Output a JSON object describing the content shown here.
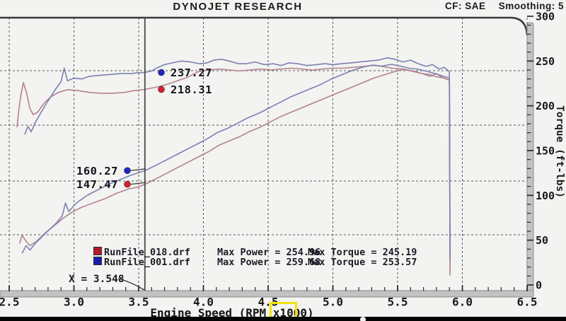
{
  "header": {
    "title": "DYNOJET RESEARCH",
    "cf_label": "CF: SAE",
    "smoothing_label": "Smoothing: 5"
  },
  "chart_data": {
    "type": "line",
    "xlabel": "Engine Speed (RPM x1000)",
    "ylabel_right": "Torque (ft-lbs)",
    "x_ticks": [
      "2.5",
      "3.0",
      "3.5",
      "4.0",
      "4.5",
      "5.0",
      "5.5",
      "6.0",
      "6.5"
    ],
    "x_range": [
      2.5,
      6.5
    ],
    "y_right_ticks": [
      "0",
      "50",
      "100",
      "150",
      "200",
      "250",
      "300"
    ],
    "y_right_range": [
      0,
      300
    ],
    "grid": true,
    "cursor": {
      "x": 3.548,
      "label": "X = 3.548",
      "readouts": [
        {
          "series": "RunFile_001.drf",
          "axis": "torque",
          "value": 237.27,
          "color": "blue"
        },
        {
          "series": "RunFile_018.drf",
          "axis": "torque",
          "value": 218.31,
          "color": "red"
        },
        {
          "series": "RunFile_001.drf",
          "axis": "power",
          "value": 160.27,
          "color": "blue"
        },
        {
          "series": "RunFile_018.drf",
          "axis": "power",
          "value": 147.47,
          "color": "red"
        }
      ]
    },
    "legend": {
      "power_label": "Max Power",
      "torque_label": "Max Torque",
      "rows": [
        {
          "file": "RunFile_018.drf",
          "max_power": 254.96,
          "max_torque": 245.19,
          "color": "red"
        },
        {
          "file": "RunFile_001.drf",
          "max_power": 259.68,
          "max_torque": 253.57,
          "color": "blue"
        }
      ]
    },
    "series": [
      {
        "name": "RunFile_018.drf torque",
        "color": "red",
        "axis": "torque",
        "points": [
          [
            2.56,
            176
          ],
          [
            2.575,
            196
          ],
          [
            2.59,
            212
          ],
          [
            2.61,
            226
          ],
          [
            2.635,
            214
          ],
          [
            2.66,
            197
          ],
          [
            2.685,
            190
          ],
          [
            2.72,
            193
          ],
          [
            2.77,
            203
          ],
          [
            2.82,
            210
          ],
          [
            2.88,
            215
          ],
          [
            2.95,
            218
          ],
          [
            3.03,
            217
          ],
          [
            3.12,
            215
          ],
          [
            3.21,
            214
          ],
          [
            3.3,
            214
          ],
          [
            3.39,
            215
          ],
          [
            3.47,
            217
          ],
          [
            3.548,
            218.31
          ],
          [
            3.64,
            221
          ],
          [
            3.72,
            224
          ],
          [
            3.8,
            228
          ],
          [
            3.88,
            232
          ],
          [
            3.96,
            238
          ],
          [
            4.04,
            240
          ],
          [
            4.12,
            241
          ],
          [
            4.2,
            240
          ],
          [
            4.28,
            239
          ],
          [
            4.36,
            240
          ],
          [
            4.44,
            241
          ],
          [
            4.52,
            240
          ],
          [
            4.6,
            241
          ],
          [
            4.68,
            242
          ],
          [
            4.76,
            241
          ],
          [
            4.84,
            240
          ],
          [
            4.92,
            241
          ],
          [
            5.0,
            242
          ],
          [
            5.08,
            242
          ],
          [
            5.16,
            243
          ],
          [
            5.24,
            244
          ],
          [
            5.31,
            245.19
          ],
          [
            5.38,
            244
          ],
          [
            5.46,
            242
          ],
          [
            5.54,
            241
          ],
          [
            5.62,
            239
          ],
          [
            5.69,
            236
          ],
          [
            5.75,
            233
          ],
          [
            5.8,
            236
          ],
          [
            5.84,
            232
          ],
          [
            5.9,
            229
          ],
          [
            5.905,
            14
          ]
        ]
      },
      {
        "name": "RunFile_001.drf torque",
        "color": "blue",
        "axis": "torque",
        "points": [
          [
            2.62,
            168
          ],
          [
            2.645,
            177
          ],
          [
            2.67,
            171
          ],
          [
            2.7,
            181
          ],
          [
            2.74,
            191
          ],
          [
            2.78,
            201
          ],
          [
            2.82,
            210
          ],
          [
            2.86,
            219
          ],
          [
            2.9,
            227
          ],
          [
            2.925,
            242
          ],
          [
            2.95,
            228
          ],
          [
            3.0,
            231
          ],
          [
            3.06,
            230
          ],
          [
            3.12,
            233
          ],
          [
            3.2,
            234
          ],
          [
            3.28,
            235
          ],
          [
            3.36,
            236
          ],
          [
            3.44,
            236
          ],
          [
            3.5,
            237
          ],
          [
            3.548,
            237.27
          ],
          [
            3.6,
            239
          ],
          [
            3.65,
            243
          ],
          [
            3.7,
            246
          ],
          [
            3.76,
            248
          ],
          [
            3.83,
            250
          ],
          [
            3.9,
            249
          ],
          [
            3.97,
            247
          ],
          [
            4.03,
            248
          ],
          [
            4.08,
            251
          ],
          [
            4.14,
            252
          ],
          [
            4.2,
            250
          ],
          [
            4.27,
            247
          ],
          [
            4.33,
            247
          ],
          [
            4.4,
            249
          ],
          [
            4.47,
            246
          ],
          [
            4.54,
            247
          ],
          [
            4.6,
            245
          ],
          [
            4.66,
            248
          ],
          [
            4.73,
            247
          ],
          [
            4.8,
            245
          ],
          [
            4.87,
            246
          ],
          [
            4.94,
            247
          ],
          [
            5.0,
            246
          ],
          [
            5.07,
            247
          ],
          [
            5.14,
            248
          ],
          [
            5.21,
            249
          ],
          [
            5.28,
            250
          ],
          [
            5.35,
            251
          ],
          [
            5.42,
            253.57
          ],
          [
            5.48,
            252
          ],
          [
            5.54,
            249
          ],
          [
            5.6,
            251
          ],
          [
            5.66,
            247
          ],
          [
            5.72,
            244
          ],
          [
            5.77,
            246
          ],
          [
            5.82,
            241
          ],
          [
            5.86,
            243
          ],
          [
            5.9,
            238
          ],
          [
            5.905,
            32
          ]
        ]
      },
      {
        "name": "RunFile_018.drf power",
        "color": "red",
        "axis": "power",
        "points": [
          [
            2.58,
            92
          ],
          [
            2.6,
            100
          ],
          [
            2.625,
            95
          ],
          [
            2.66,
            90
          ],
          [
            2.71,
            94
          ],
          [
            2.77,
            101
          ],
          [
            2.84,
            108
          ],
          [
            2.91,
            115
          ],
          [
            2.98,
            121
          ],
          [
            3.06,
            126
          ],
          [
            3.15,
            130
          ],
          [
            3.24,
            134
          ],
          [
            3.33,
            139
          ],
          [
            3.42,
            143
          ],
          [
            3.5,
            145
          ],
          [
            3.548,
            147.47
          ],
          [
            3.64,
            153
          ],
          [
            3.72,
            158
          ],
          [
            3.8,
            163
          ],
          [
            3.88,
            168
          ],
          [
            3.96,
            173
          ],
          [
            4.04,
            178
          ],
          [
            4.12,
            184
          ],
          [
            4.2,
            188
          ],
          [
            4.28,
            192
          ],
          [
            4.36,
            197
          ],
          [
            4.44,
            201
          ],
          [
            4.52,
            206
          ],
          [
            4.6,
            211
          ],
          [
            4.68,
            215
          ],
          [
            4.76,
            219
          ],
          [
            4.84,
            223
          ],
          [
            4.92,
            227
          ],
          [
            5.0,
            231
          ],
          [
            5.08,
            235
          ],
          [
            5.16,
            239
          ],
          [
            5.24,
            243
          ],
          [
            5.32,
            247
          ],
          [
            5.4,
            250
          ],
          [
            5.48,
            253
          ],
          [
            5.55,
            254.96
          ],
          [
            5.62,
            253
          ],
          [
            5.69,
            251
          ],
          [
            5.75,
            250
          ],
          [
            5.8,
            248
          ],
          [
            5.85,
            247
          ],
          [
            5.9,
            245
          ],
          [
            5.905,
            62
          ]
        ]
      },
      {
        "name": "RunFile_001.drf power",
        "color": "blue",
        "axis": "power",
        "points": [
          [
            2.6,
            83
          ],
          [
            2.63,
            90
          ],
          [
            2.66,
            86
          ],
          [
            2.7,
            92
          ],
          [
            2.75,
            98
          ],
          [
            2.81,
            105
          ],
          [
            2.87,
            112
          ],
          [
            2.91,
            118
          ],
          [
            2.935,
            130
          ],
          [
            2.96,
            122
          ],
          [
            3.02,
            130
          ],
          [
            3.1,
            137
          ],
          [
            3.18,
            142
          ],
          [
            3.26,
            147
          ],
          [
            3.34,
            151
          ],
          [
            3.42,
            155
          ],
          [
            3.49,
            158
          ],
          [
            3.548,
            160.27
          ],
          [
            3.63,
            165
          ],
          [
            3.71,
            170
          ],
          [
            3.79,
            175
          ],
          [
            3.87,
            180
          ],
          [
            3.95,
            185
          ],
          [
            4.03,
            190
          ],
          [
            4.11,
            196
          ],
          [
            4.19,
            200
          ],
          [
            4.27,
            205
          ],
          [
            4.35,
            210
          ],
          [
            4.43,
            214
          ],
          [
            4.51,
            219
          ],
          [
            4.59,
            224
          ],
          [
            4.67,
            229
          ],
          [
            4.75,
            233
          ],
          [
            4.83,
            237
          ],
          [
            4.91,
            241
          ],
          [
            4.99,
            246
          ],
          [
            5.07,
            250
          ],
          [
            5.15,
            254
          ],
          [
            5.23,
            257
          ],
          [
            5.31,
            259
          ],
          [
            5.38,
            258
          ],
          [
            5.45,
            259.68
          ],
          [
            5.52,
            258
          ],
          [
            5.59,
            256
          ],
          [
            5.66,
            255
          ],
          [
            5.73,
            253
          ],
          [
            5.79,
            251
          ],
          [
            5.84,
            249
          ],
          [
            5.9,
            247
          ],
          [
            5.905,
            77
          ]
        ]
      }
    ]
  },
  "colors": {
    "curve_red": "#b2838e",
    "curve_blue": "#7b80b2",
    "marker_red": "#d5202e",
    "marker_blue": "#2025c8",
    "swatch_red": "#b01c26",
    "swatch_blue": "#1c1cb0",
    "grid": "#3c3c3c",
    "frame": "#3a3a3a",
    "bar_fill": "#c2c2c2",
    "bar_edge": "#8a8a8a",
    "text": "#1a1a1a",
    "highlight": "#f2e30e"
  }
}
